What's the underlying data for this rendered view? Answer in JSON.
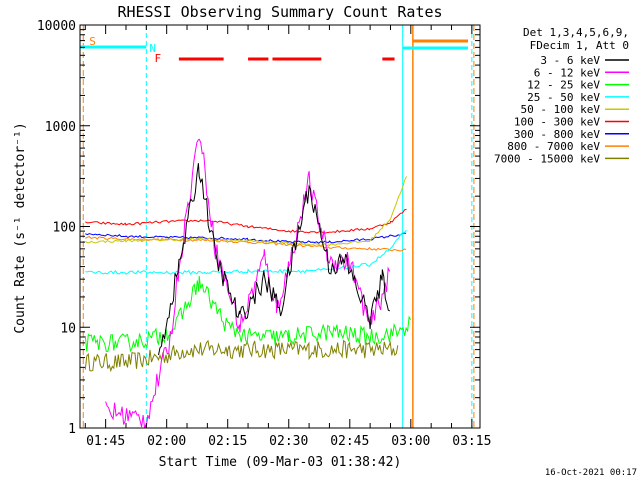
{
  "chart_data": {
    "type": "line",
    "title": "RHESSI Observing Summary Count Rates",
    "xlabel": "Start Time (09-Mar-03 01:38:42)",
    "ylabel": "Count Rate (s⁻¹ detector⁻¹)",
    "y_scale": "log",
    "ylim": [
      1,
      10000
    ],
    "xlim": [
      "01:38:42",
      "03:17:00"
    ],
    "x_ticks": [
      "01:45",
      "02:00",
      "02:15",
      "02:30",
      "02:45",
      "03:00",
      "03:15"
    ],
    "y_ticks": [
      "1",
      "10",
      "100",
      "1000",
      "10000"
    ],
    "timestamp": "16-Oct-2021 00:17",
    "legend_header": [
      "Det 1,3,4,5,6,9,",
      "FDecim 1, Att 0"
    ],
    "legend_position": "right",
    "flag_labels": {
      "saa": "S",
      "night": "N",
      "flare": "F"
    },
    "series": [
      {
        "name": "3 - 6 keV",
        "color": "#000000",
        "x": [
          "01:40",
          "01:55",
          "01:58",
          "02:03",
          "02:08",
          "02:12",
          "02:18",
          "02:24",
          "02:28",
          "02:35",
          "02:40",
          "02:44",
          "02:50",
          "02:53",
          "02:55"
        ],
        "values": [
          null,
          null,
          5,
          40,
          400,
          50,
          12,
          30,
          15,
          250,
          40,
          45,
          12,
          30,
          15
        ]
      },
      {
        "name": "6 - 12 keV",
        "color": "#ff00ff",
        "x": [
          "01:45",
          "01:55",
          "02:01",
          "02:03",
          "02:08",
          "02:12",
          "02:18",
          "02:24",
          "02:27",
          "02:30",
          "02:35",
          "02:40",
          "02:45",
          "02:50",
          "02:55"
        ],
        "values": [
          1.5,
          1.2,
          8,
          40,
          900,
          60,
          10,
          50,
          15,
          40,
          280,
          45,
          45,
          10,
          35
        ]
      },
      {
        "name": "12 - 25 keV",
        "color": "#00ff00",
        "x": [
          "01:40",
          "01:50",
          "01:58",
          "02:02",
          "02:08",
          "02:15",
          "02:20",
          "02:30",
          "02:40",
          "02:50",
          "02:57",
          "03:00"
        ],
        "values": [
          7,
          7,
          8,
          10,
          28,
          10,
          8,
          8,
          9,
          8,
          9,
          11
        ]
      },
      {
        "name": "25 - 50 keV",
        "color": "#00ffff",
        "x": [
          "01:40",
          "01:50",
          "02:00",
          "02:10",
          "02:20",
          "02:30",
          "02:40",
          "02:50",
          "02:55",
          "02:59"
        ],
        "values": [
          35,
          35,
          35,
          35,
          36,
          36,
          37,
          42,
          60,
          95
        ]
      },
      {
        "name": "50 - 100 keV",
        "color": "#c8c800",
        "x": [
          "01:40",
          "01:50",
          "02:00",
          "02:10",
          "02:20",
          "02:30",
          "02:40",
          "02:50",
          "02:55",
          "02:59"
        ],
        "values": [
          70,
          72,
          74,
          75,
          72,
          68,
          66,
          72,
          120,
          320
        ]
      },
      {
        "name": "100 - 300 keV",
        "color": "#ff0000",
        "x": [
          "01:40",
          "01:50",
          "02:00",
          "02:10",
          "02:20",
          "02:30",
          "02:40",
          "02:50",
          "02:55",
          "02:59"
        ],
        "values": [
          110,
          105,
          112,
          115,
          100,
          90,
          88,
          95,
          110,
          150
        ]
      },
      {
        "name": "300 - 800 keV",
        "color": "#0000ff",
        "x": [
          "01:40",
          "01:50",
          "02:00",
          "02:10",
          "02:20",
          "02:30",
          "02:40",
          "02:50",
          "02:59"
        ],
        "values": [
          85,
          80,
          78,
          77,
          75,
          70,
          70,
          75,
          85
        ]
      },
      {
        "name": "800 - 7000 keV",
        "color": "#ff8000",
        "x": [
          "01:40",
          "01:50",
          "02:00",
          "02:10",
          "02:20",
          "02:30",
          "02:40",
          "02:50",
          "02:59"
        ],
        "values": [
          78,
          75,
          74,
          73,
          70,
          66,
          62,
          60,
          58
        ]
      },
      {
        "name": "7000 - 15000 keV",
        "color": "#808000",
        "x": [
          "01:40",
          "01:50",
          "01:58",
          "02:05",
          "02:15",
          "02:25",
          "02:35",
          "02:45",
          "02:57"
        ],
        "values": [
          4.5,
          4.5,
          5,
          6,
          6,
          6,
          6,
          6,
          6
        ]
      }
    ]
  }
}
